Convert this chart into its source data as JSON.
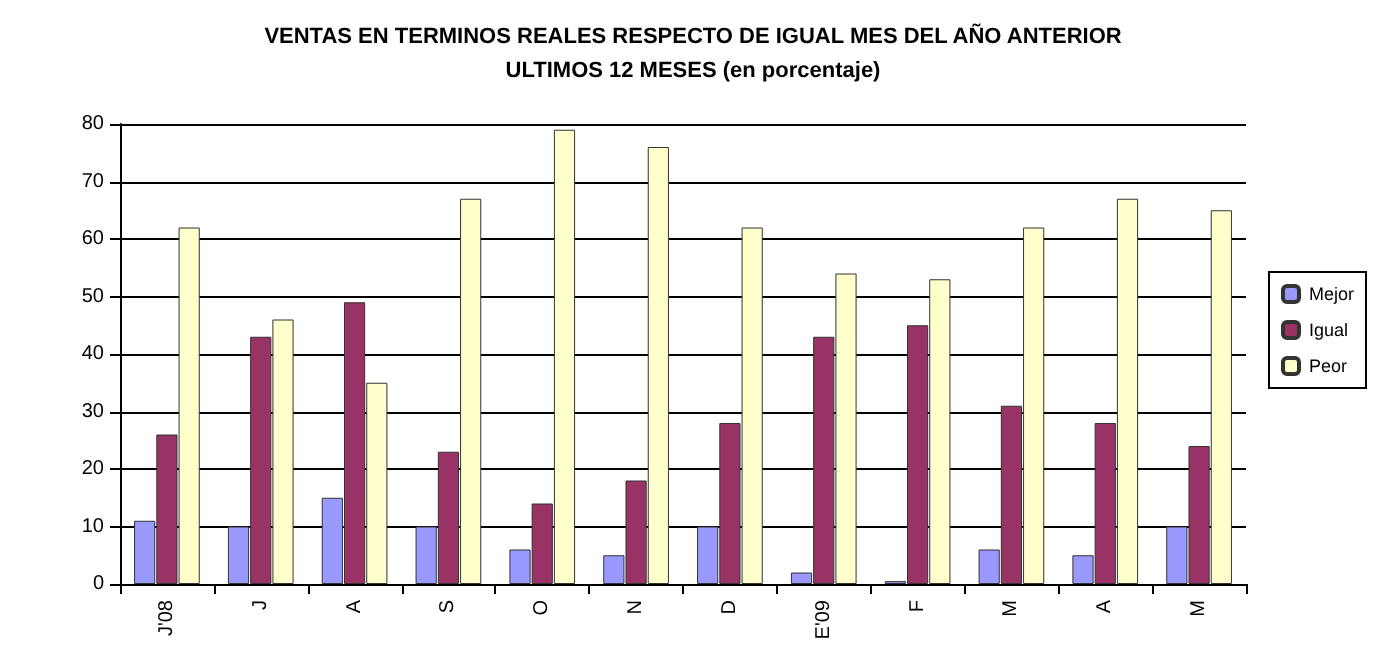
{
  "chart_data": {
    "type": "bar",
    "title": "VENTAS EN TERMINOS REALES RESPECTO DE IGUAL MES DEL AÑO ANTERIOR",
    "subtitle": "ULTIMOS 12 MESES (en porcentaje)",
    "categories": [
      "J'08",
      "J",
      "A",
      "S",
      "O",
      "N",
      "D",
      "E'09",
      "F",
      "M",
      "A",
      "M"
    ],
    "series": [
      {
        "name": "Mejor",
        "color": "#9999ff",
        "values": [
          11,
          10,
          15,
          10,
          6,
          5,
          10,
          2,
          0.5,
          6,
          5,
          10
        ]
      },
      {
        "name": "Igual",
        "color": "#993366",
        "values": [
          26,
          43,
          49,
          23,
          14,
          18,
          28,
          43,
          45,
          31,
          28,
          24
        ]
      },
      {
        "name": "Peor",
        "color": "#ffffcc",
        "values": [
          62,
          46,
          35,
          67,
          79,
          76,
          62,
          54,
          53,
          62,
          67,
          65
        ]
      }
    ],
    "ylim": [
      0,
      80
    ],
    "yticks": [
      0,
      10,
      20,
      30,
      40,
      50,
      60,
      70,
      80
    ],
    "grid": "y",
    "legend": "right"
  }
}
